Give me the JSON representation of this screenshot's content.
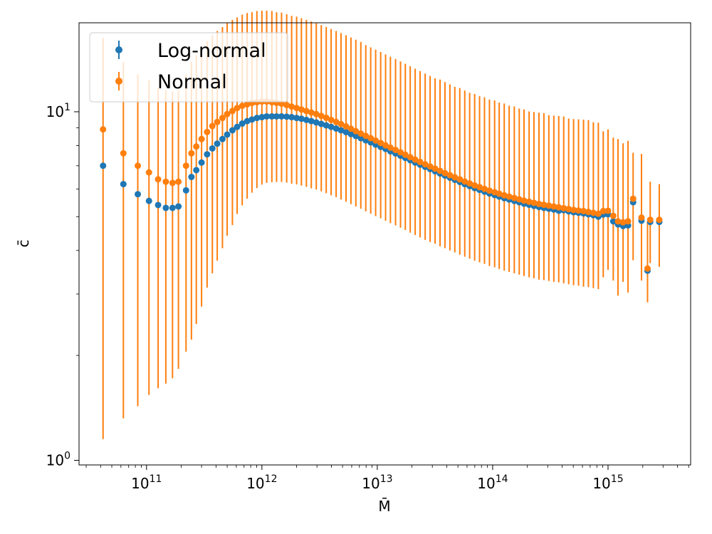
{
  "chart_data": {
    "type": "scatter",
    "title": "",
    "xlabel": "M̄",
    "ylabel": "c̄",
    "xscale": "log",
    "yscale": "log",
    "xlim": [
      26000000000.0,
      5200000000000000.0
    ],
    "ylim": [
      0.97,
      18
    ],
    "x_ticks": [
      {
        "base": "10",
        "exp": "11",
        "value": 100000000000.0
      },
      {
        "base": "10",
        "exp": "12",
        "value": 1000000000000.0
      },
      {
        "base": "10",
        "exp": "13",
        "value": 10000000000000.0
      },
      {
        "base": "10",
        "exp": "14",
        "value": 100000000000000.0
      },
      {
        "base": "10",
        "exp": "15",
        "value": 1000000000000000.0
      }
    ],
    "y_ticks": [
      {
        "base": "10",
        "exp": "0",
        "value": 1
      },
      {
        "base": "10",
        "exp": "1",
        "value": 10
      }
    ],
    "grid": false,
    "legend_position": "top-left",
    "x": [
      42000000000.0,
      63000000000.0,
      84000000000.0,
      105000000000.0,
      126000000000.0,
      147000000000.0,
      168000000000.0,
      189000000000.0,
      220000000000.0,
      245000000000.0,
      270000000000.0,
      300000000000.0,
      335000000000.0,
      372000000000.0,
      410000000000.0,
      455000000000.0,
      500000000000.0,
      555000000000.0,
      610000000000.0,
      675000000000.0,
      745000000000.0,
      820000000000.0,
      905000000000.0,
      1000000000000.0,
      1100000000000.0,
      1220000000000.0,
      1340000000000.0,
      1480000000000.0,
      1640000000000.0,
      1810000000000.0,
      2000000000000.0,
      2200000000000.0,
      2430000000000.0,
      2680000000000.0,
      2960000000000.0,
      3270000000000.0,
      3610000000000.0,
      3980000000000.0,
      4400000000000.0,
      4850000000000.0,
      5360000000000.0,
      5910000000000.0,
      6520000000000.0,
      7200000000000.0,
      7950000000000.0,
      8770000000000.0,
      9680000000000.0,
      10700000000000.0,
      11800000000000.0,
      13000000000000.0,
      14400000000000.0,
      15900000000000.0,
      17500000000000.0,
      19300000000000.0,
      21300000000000.0,
      23500000000000.0,
      26000000000000.0,
      28700000000000.0,
      31700000000000.0,
      35000000000000.0,
      38600000000000.0,
      42600000000000.0,
      47000000000000.0,
      51900000000000.0,
      57300000000000.0,
      63200000000000.0,
      69800000000000.0,
      77000000000000.0,
      85000000000000.0,
      93800000000000.0,
      104000000000000.0,
      114000000000000.0,
      126000000000000.0,
      139000000000000.0,
      154000000000000.0,
      170000000000000.0,
      187000000000000.0,
      207000000000000.0,
      228000000000000.0,
      252000000000000.0,
      278000000000000.0,
      307000000000000.0,
      339000000000000.0,
      374000000000000.0,
      413000000000000.0,
      456000000000000.0,
      503000000000000.0,
      555000000000000.0,
      613000000000000.0,
      676000000000000.0,
      746000000000000.0,
      824000000000000.0,
      909000000000000.0,
      1000000000000000.0,
      1110000000000000.0,
      1220000000000000.0,
      1350000000000000.0,
      1490000000000000.0,
      1650000000000000.0,
      1950000000000000.0,
      2200000000000000.0,
      2320000000000000.0,
      2780000000000000.0
    ],
    "series": [
      {
        "name": "Log-normal",
        "color": "#1f77b4",
        "values": [
          7.0,
          6.2,
          5.8,
          5.55,
          5.4,
          5.3,
          5.3,
          5.35,
          5.95,
          6.5,
          6.8,
          7.15,
          7.55,
          7.85,
          8.1,
          8.35,
          8.6,
          8.85,
          9.05,
          9.25,
          9.4,
          9.5,
          9.6,
          9.65,
          9.7,
          9.7,
          9.7,
          9.7,
          9.68,
          9.65,
          9.6,
          9.55,
          9.48,
          9.4,
          9.32,
          9.23,
          9.14,
          9.05,
          8.95,
          8.85,
          8.74,
          8.63,
          8.52,
          8.4,
          8.28,
          8.17,
          8.05,
          7.93,
          7.82,
          7.7,
          7.59,
          7.48,
          7.37,
          7.26,
          7.15,
          7.05,
          6.95,
          6.85,
          6.75,
          6.65,
          6.56,
          6.47,
          6.38,
          6.29,
          6.2,
          6.12,
          6.04,
          5.97,
          5.9,
          5.83,
          5.77,
          5.71,
          5.65,
          5.6,
          5.55,
          5.5,
          5.45,
          5.41,
          5.37,
          5.33,
          5.3,
          5.27,
          5.24,
          5.2,
          5.22,
          5.18,
          5.15,
          5.13,
          5.11,
          5.08,
          5.05,
          5.0,
          5.07,
          5.08,
          4.85,
          4.75,
          4.7,
          4.72,
          5.5,
          4.87,
          3.5,
          4.83,
          4.83
        ],
        "yerr_low": [],
        "yerr_high": []
      },
      {
        "name": "Normal",
        "color": "#ff7f0e",
        "values": [
          8.9,
          7.6,
          7.0,
          6.7,
          6.4,
          6.3,
          6.25,
          6.3,
          7.0,
          7.6,
          7.95,
          8.35,
          8.75,
          9.1,
          9.35,
          9.6,
          9.85,
          10.05,
          10.25,
          10.4,
          10.5,
          10.6,
          10.65,
          10.7,
          10.7,
          10.65,
          10.6,
          10.55,
          10.45,
          10.35,
          10.25,
          10.15,
          10.05,
          9.95,
          9.85,
          9.73,
          9.61,
          9.48,
          9.35,
          9.22,
          9.08,
          8.94,
          8.8,
          8.66,
          8.53,
          8.4,
          8.27,
          8.14,
          8.01,
          7.89,
          7.77,
          7.65,
          7.53,
          7.41,
          7.29,
          7.18,
          7.07,
          6.97,
          6.87,
          6.77,
          6.67,
          6.58,
          6.49,
          6.4,
          6.31,
          6.23,
          6.15,
          6.08,
          6.01,
          5.94,
          5.88,
          5.82,
          5.76,
          5.71,
          5.66,
          5.61,
          5.56,
          5.52,
          5.48,
          5.44,
          5.41,
          5.38,
          5.35,
          5.32,
          5.29,
          5.26,
          5.23,
          5.21,
          5.19,
          5.16,
          5.13,
          5.1,
          5.19,
          5.2,
          5.03,
          4.85,
          4.82,
          4.85,
          5.63,
          4.97,
          3.55,
          4.9,
          4.9
        ],
        "yerr_low": [
          7.75,
          6.28,
          5.57,
          5.16,
          4.79,
          4.64,
          4.53,
          4.47,
          4.95,
          5.38,
          5.49,
          5.59,
          5.62,
          5.66,
          5.61,
          5.54,
          5.44,
          5.32,
          5.16,
          5.01,
          4.87,
          4.74,
          4.61,
          4.52,
          4.45,
          4.37,
          4.31,
          4.26,
          4.19,
          4.13,
          4.06,
          4.01,
          3.96,
          3.92,
          3.87,
          3.82,
          3.77,
          3.72,
          3.66,
          3.62,
          3.56,
          3.51,
          3.45,
          3.39,
          3.35,
          3.3,
          3.25,
          3.19,
          3.14,
          3.1,
          3.05,
          3.0,
          2.95,
          2.91,
          2.86,
          2.82,
          2.78,
          2.74,
          2.69,
          2.66,
          2.61,
          2.58,
          2.54,
          2.51,
          2.47,
          2.44,
          2.41,
          2.38,
          2.35,
          2.33,
          2.3,
          2.28,
          2.26,
          2.24,
          2.22,
          2.2,
          2.18,
          2.17,
          2.15,
          2.14,
          2.12,
          2.11,
          2.1,
          2.08,
          2.07,
          2.06,
          2.05,
          2.04,
          2.04,
          2.02,
          2.01,
          2.0,
          1.84,
          1.68,
          1.75,
          1.88,
          1.57,
          1.82,
          1.88,
          1.69,
          0.71,
          1.22,
          1.31
        ],
        "yerr_high": [
          7.4,
          6.3,
          5.8,
          5.6,
          5.3,
          5.2,
          5.2,
          5.2,
          5.8,
          6.3,
          6.6,
          6.9,
          7.2,
          7.5,
          7.7,
          7.9,
          8.1,
          8.3,
          8.4,
          8.6,
          8.7,
          8.7,
          8.8,
          8.8,
          8.8,
          8.8,
          8.7,
          8.7,
          8.6,
          8.5,
          8.5,
          8.4,
          8.3,
          8.2,
          8.1,
          8.0,
          7.9,
          7.8,
          7.7,
          7.6,
          7.5,
          7.4,
          7.3,
          7.2,
          7.0,
          6.9,
          6.8,
          6.7,
          6.6,
          6.5,
          6.4,
          6.3,
          6.2,
          6.1,
          6.0,
          5.9,
          5.8,
          5.7,
          5.6,
          5.6,
          5.5,
          5.4,
          5.3,
          5.3,
          5.2,
          5.1,
          5.1,
          5.0,
          5.0,
          4.9,
          4.9,
          4.8,
          4.8,
          4.7,
          4.7,
          4.6,
          4.6,
          4.5,
          4.5,
          4.5,
          4.5,
          4.4,
          4.4,
          4.4,
          4.4,
          4.3,
          4.3,
          4.3,
          4.3,
          4.3,
          4.2,
          4.2,
          3.6,
          3.7,
          3.4,
          3.5,
          3.3,
          3.4,
          2.0,
          2.6,
          1.3,
          1.4,
          1.3
        ]
      }
    ]
  }
}
